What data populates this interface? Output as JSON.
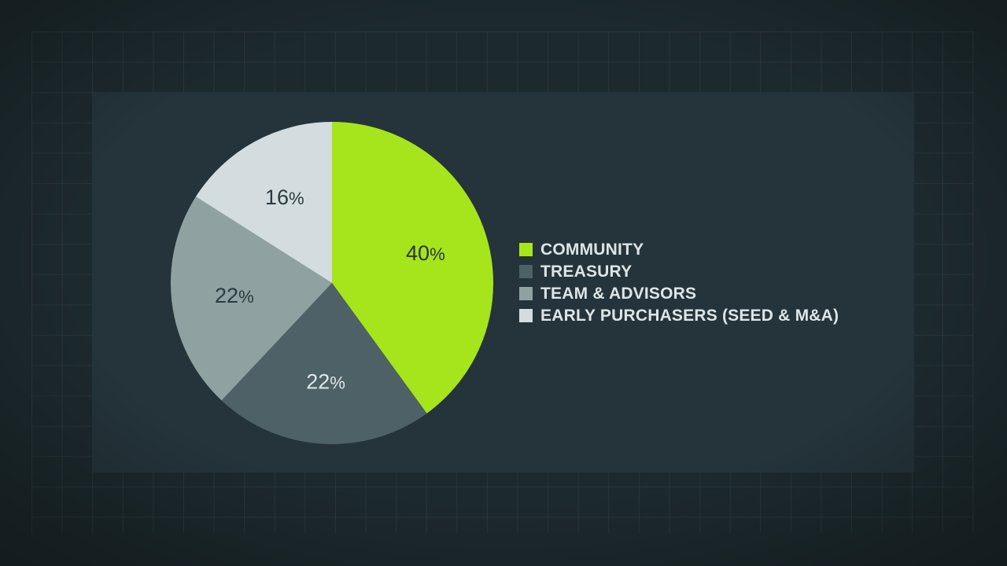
{
  "chart_data": {
    "type": "pie",
    "title": "",
    "start_angle_deg": -90,
    "direction": "clockwise",
    "legend_position": "right",
    "slices": [
      {
        "label": "COMMUNITY",
        "value": 40,
        "display": "40%",
        "color": "#a6e51b",
        "label_color": "#27363a"
      },
      {
        "label": "TREASURY",
        "value": 22,
        "display": "22%",
        "color": "#4e6166",
        "label_color": "#dfe7e9"
      },
      {
        "label": "TEAM & ADVISORS",
        "value": 22,
        "display": "22%",
        "color": "#90a1a2",
        "label_color": "#2b3a3e"
      },
      {
        "label": "EARLY PURCHASERS (SEED & M&A)",
        "value": 16,
        "display": "16%",
        "color": "#d3dde0",
        "label_color": "#2b3a3e"
      }
    ]
  },
  "theme": {
    "background": "#1c292d",
    "panel": "#24343a",
    "grid_line": "rgba(255,255,255,0.06)",
    "legend_text": "#dde5e7"
  }
}
